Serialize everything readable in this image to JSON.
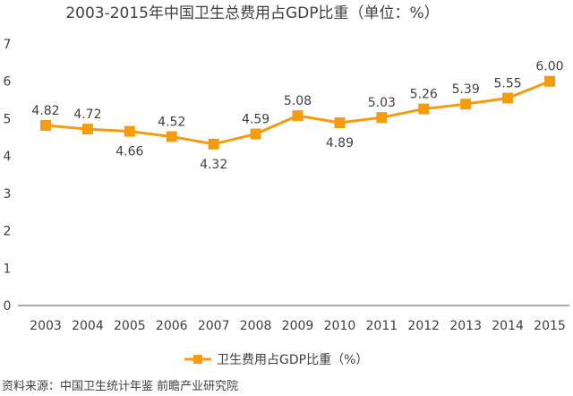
{
  "chart_data": {
    "type": "line",
    "title": "2003-2015年中国卫生总费用占GDP比重（单位：%）",
    "categories": [
      "2003",
      "2004",
      "2005",
      "2006",
      "2007",
      "2008",
      "2009",
      "2010",
      "2011",
      "2012",
      "2013",
      "2014",
      "2015"
    ],
    "series": [
      {
        "name": "卫生费用占GDP比重（%）",
        "values": [
          4.82,
          4.72,
          4.66,
          4.52,
          4.32,
          4.59,
          5.08,
          4.89,
          5.03,
          5.26,
          5.39,
          5.55,
          6.0
        ],
        "labels": [
          "4.82",
          "4.72",
          "4.66",
          "4.52",
          "4.32",
          "4.59",
          "5.08",
          "4.89",
          "5.03",
          "5.26",
          "5.39",
          "5.55",
          "6.00"
        ],
        "color": "#f39c12"
      }
    ],
    "ylim": [
      0,
      7
    ],
    "yticks": [
      "0",
      "1",
      "2",
      "3",
      "4",
      "5",
      "6",
      "7"
    ],
    "xlabel": "",
    "ylabel": "",
    "grid": false,
    "legend_position": "bottom"
  },
  "source": "资料来源：中国卫生统计年鉴 前瞻产业研究院",
  "colors": {
    "line": "#f39c12",
    "axis": "#595959",
    "text": "#404040"
  }
}
